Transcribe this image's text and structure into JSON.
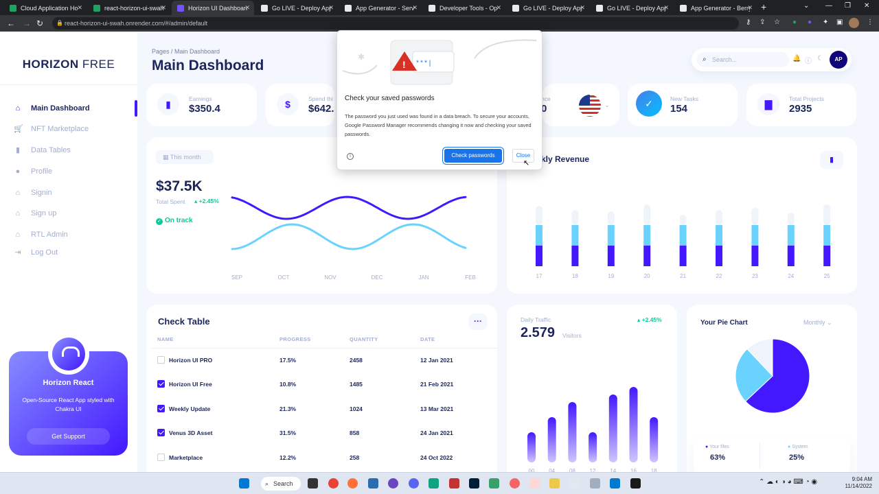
{
  "browser": {
    "tabs": [
      {
        "title": "Cloud Application Ho",
        "color": "#1da462",
        "active": false
      },
      {
        "title": "react-horizon-ui-swah",
        "color": "#1da462",
        "active": false
      },
      {
        "title": "Horizon UI Dashboard",
        "color": "#7551ff",
        "active": true
      },
      {
        "title": "Go LIVE - Deploy App",
        "color": "#e8eaed",
        "active": false
      },
      {
        "title": "App Generator - Serv",
        "color": "#e8eaed",
        "active": false
      },
      {
        "title": "Developer Tools - Op",
        "color": "#e8eaed",
        "active": false
      },
      {
        "title": "Go LIVE - Deploy App",
        "color": "#e8eaed",
        "active": false
      },
      {
        "title": "Go LIVE - Deploy App",
        "color": "#e8eaed",
        "active": false
      },
      {
        "title": "App Generator - Berry",
        "color": "#e8eaed",
        "active": false
      }
    ],
    "url": "react-horizon-ui-swah.onrender.com/#/admin/default"
  },
  "sidebar": {
    "brand_bold": "HORIZON",
    "brand_light": " FREE",
    "items": [
      {
        "label": "Main Dashboard",
        "icon": "home-icon",
        "glyph": "⌂",
        "active": true
      },
      {
        "label": "NFT Marketplace",
        "icon": "cart-icon",
        "glyph": "🛒",
        "active": false
      },
      {
        "label": "Data Tables",
        "icon": "bar-chart-icon",
        "glyph": "▮",
        "active": false
      },
      {
        "label": "Profile",
        "icon": "person-icon",
        "glyph": "●",
        "active": false
      },
      {
        "label": "Signin",
        "icon": "lock-icon",
        "glyph": "⌂",
        "active": false
      },
      {
        "label": "Sign up",
        "icon": "key-icon",
        "glyph": "⌂",
        "active": false
      },
      {
        "label": "RTL Admin",
        "icon": "home-icon",
        "glyph": "⌂",
        "active": false
      },
      {
        "label": "Log Out",
        "icon": "logout-icon",
        "glyph": "⇥",
        "active": false
      }
    ],
    "promo": {
      "title": "Horizon React",
      "text": "Open-Source React App styled with Chakra UI",
      "button": "Get Support"
    }
  },
  "header": {
    "breadcrumb": "Pages  /  Main Dashboard",
    "title": "Main Dashboard",
    "search_placeholder": "Search...",
    "avatar_initials": "AP"
  },
  "stats": [
    {
      "label": "Earnings",
      "value": "$350.4",
      "icon": "bar-chart-icon"
    },
    {
      "label": "Spend thi",
      "value": "$642.",
      "icon": "dollar-icon"
    },
    {
      "label": "nce",
      "value": "0",
      "icon": "flag-icon"
    },
    {
      "label": "New Tasks",
      "value": "154",
      "icon": "check-icon"
    },
    {
      "label": "Total Projects",
      "value": "2935",
      "icon": "file-icon"
    }
  ],
  "popup": {
    "title": "Check your saved passwords",
    "body": "The password you just used was found in a data breach. To secure your accounts, Google Password Manager recommends changing it now and checking your saved passwords.",
    "primary": "Check passwords",
    "secondary": "Close",
    "masked": "***|"
  },
  "total_spent": {
    "badge": "This month",
    "value": "$37.5K",
    "label": "Total Spent",
    "change": "+2.45%",
    "status": "On track",
    "chart_data": {
      "type": "line",
      "categories": [
        "SEP",
        "OCT",
        "NOV",
        "DEC",
        "JAN",
        "FEB"
      ],
      "colors": [
        "#4318ff",
        "#6ad2ff"
      ]
    }
  },
  "weekly_revenue": {
    "title": "kly Revenue",
    "chart_data": {
      "type": "bar",
      "categories": [
        "17",
        "18",
        "19",
        "20",
        "21",
        "22",
        "23",
        "24",
        "25"
      ],
      "series": [
        {
          "values": [
            30,
            30,
            30,
            30,
            30,
            30,
            30,
            30,
            30
          ],
          "color": "#4318ff"
        },
        {
          "values": [
            30,
            30,
            30,
            30,
            30,
            30,
            30,
            30,
            30
          ],
          "color": "#6ad2ff"
        },
        {
          "values": [
            28,
            22,
            20,
            30,
            15,
            22,
            25,
            18,
            30
          ],
          "color": "#eff4fb"
        }
      ]
    }
  },
  "check_table": {
    "title": "Check Table",
    "columns": [
      "NAME",
      "PROGRESS",
      "QUANTITY",
      "DATE"
    ],
    "rows": [
      {
        "checked": false,
        "name": "Horizon UI PRO",
        "progress": "17.5%",
        "quantity": "2458",
        "date": "12 Jan 2021"
      },
      {
        "checked": true,
        "name": "Horizon UI Free",
        "progress": "10.8%",
        "quantity": "1485",
        "date": "21 Feb 2021"
      },
      {
        "checked": true,
        "name": "Weekly Update",
        "progress": "21.3%",
        "quantity": "1024",
        "date": "13 Mar 2021"
      },
      {
        "checked": true,
        "name": "Venus 3D Asset",
        "progress": "31.5%",
        "quantity": "858",
        "date": "24 Jan 2021"
      },
      {
        "checked": false,
        "name": "Marketplace",
        "progress": "12.2%",
        "quantity": "258",
        "date": "24 Oct 2022"
      }
    ]
  },
  "daily_traffic": {
    "label": "Daily Traffic",
    "value": "2.579",
    "unit": "Visitors",
    "change": "+2.45%",
    "chart_data": {
      "type": "bar",
      "categories": [
        "00",
        "04",
        "08",
        "12",
        "14",
        "16",
        "18"
      ],
      "values": [
        20,
        30,
        40,
        20,
        45,
        50,
        30
      ]
    }
  },
  "pie": {
    "title": "Your Pie Chart",
    "period": "Monthly",
    "legend": [
      {
        "label": "Your files",
        "value": "63%",
        "color": "#4318ff"
      },
      {
        "label": "System",
        "value": "25%",
        "color": "#6ad2ff"
      }
    ],
    "chart_data": {
      "type": "pie",
      "slices": [
        {
          "value": 63,
          "color": "#4318ff"
        },
        {
          "value": 25,
          "color": "#6ad2ff"
        },
        {
          "value": 12,
          "color": "#eff4fb"
        }
      ]
    }
  },
  "taskbar": {
    "search": "Search",
    "time": "9:04 AM",
    "date": "11/14/2022"
  }
}
